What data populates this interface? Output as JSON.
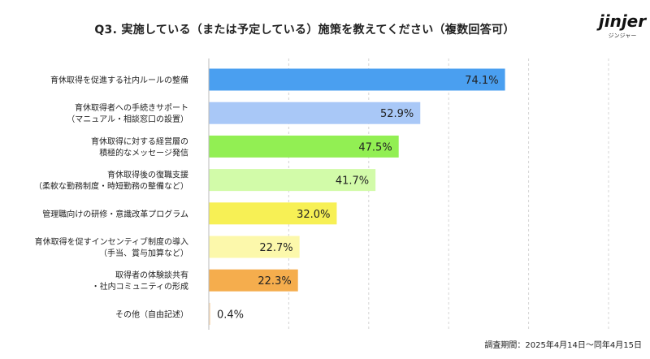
{
  "title": "Q3. 実施している（または予定している）施策を教えてください（複数回答可）",
  "logo": {
    "word": "jinjer",
    "sub": "ジンジャー"
  },
  "footnote": "調査期間：2025年4月14日〜同年4月15日",
  "chart_data": {
    "type": "bar",
    "orientation": "horizontal",
    "value_suffix": "%",
    "xlim": [
      0,
      100
    ],
    "grid": "vertical dashed",
    "categories": [
      [
        "育休取得を促進する社内ルールの整備"
      ],
      [
        "育休取得者への手続きサポート",
        "（マニュアル・相談窓口の設置）"
      ],
      [
        "育休取得に対する経営層の",
        "積極的なメッセージ発信"
      ],
      [
        "育休取得後の復職支援",
        "（柔軟な勤務制度・時短勤務の整備など）"
      ],
      [
        "管理職向けの研修・意識改革プログラム"
      ],
      [
        "育休取得を促すインセンティブ制度の導入",
        "（手当、賞与加算など）"
      ],
      [
        "取得者の体験談共有",
        "・社内コミュニティの形成"
      ],
      [
        "その他（自由記述）"
      ]
    ],
    "values": [
      74.1,
      52.9,
      47.5,
      41.7,
      32.0,
      22.7,
      22.3,
      0.4
    ],
    "labels": [
      "74.1%",
      "52.9%",
      "47.5%",
      "41.7%",
      "32.0%",
      "22.7%",
      "22.3%",
      "0.4%"
    ],
    "colors": [
      "#4a9ff0",
      "#a9c8f7",
      "#92ef53",
      "#d2fba9",
      "#f7f055",
      "#fcf8ab",
      "#f5ad4d",
      "#fbe0c0"
    ]
  }
}
